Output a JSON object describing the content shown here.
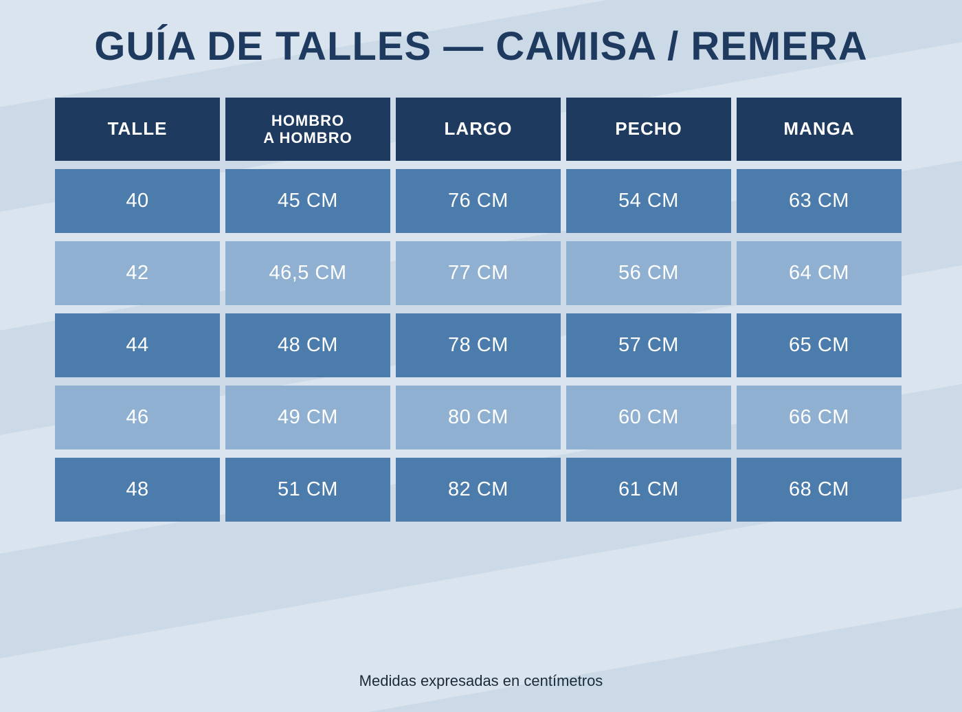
{
  "title": "GUÍA DE TALLES — CAMISA / REMERA",
  "footer_note": "Medidas expresadas en centímetros",
  "colors": {
    "background": "#ccdae7",
    "stripe": "#dde8f1",
    "header_bg": "#1e3a5f",
    "row_dark": "#4c7cab",
    "row_light": "#8fb0d0",
    "title_text": "#1e3a5f",
    "cell_text": "#ffffff"
  },
  "table": {
    "headers": [
      "TALLE",
      "HOMBRO\nA HOMBRO",
      "LARGO",
      "PECHO",
      "MANGA"
    ],
    "rows": [
      [
        "40",
        "45 CM",
        "76 CM",
        "54 CM",
        "63 CM"
      ],
      [
        "42",
        "46,5 CM",
        "77 CM",
        "56 CM",
        "64 CM"
      ],
      [
        "44",
        "48 CM",
        "78 CM",
        "57 CM",
        "65 CM"
      ],
      [
        "46",
        "49 CM",
        "80 CM",
        "60 CM",
        "66 CM"
      ],
      [
        "48",
        "51 CM",
        "82 CM",
        "61 CM",
        "68 CM"
      ]
    ]
  },
  "chart_data": {
    "type": "table",
    "title": "GUÍA DE TALLES — CAMISA / REMERA",
    "columns": [
      "TALLE",
      "HOMBRO A HOMBRO",
      "LARGO",
      "PECHO",
      "MANGA"
    ],
    "rows": [
      [
        "40",
        "45 CM",
        "76 CM",
        "54 CM",
        "63 CM"
      ],
      [
        "42",
        "46,5 CM",
        "77 CM",
        "56 CM",
        "64 CM"
      ],
      [
        "44",
        "48 CM",
        "78 CM",
        "57 CM",
        "65 CM"
      ],
      [
        "46",
        "49 CM",
        "80 CM",
        "60 CM",
        "66 CM"
      ],
      [
        "48",
        "51 CM",
        "82 CM",
        "61 CM",
        "68 CM"
      ]
    ],
    "note": "Medidas expresadas en centímetros",
    "units": "cm"
  }
}
